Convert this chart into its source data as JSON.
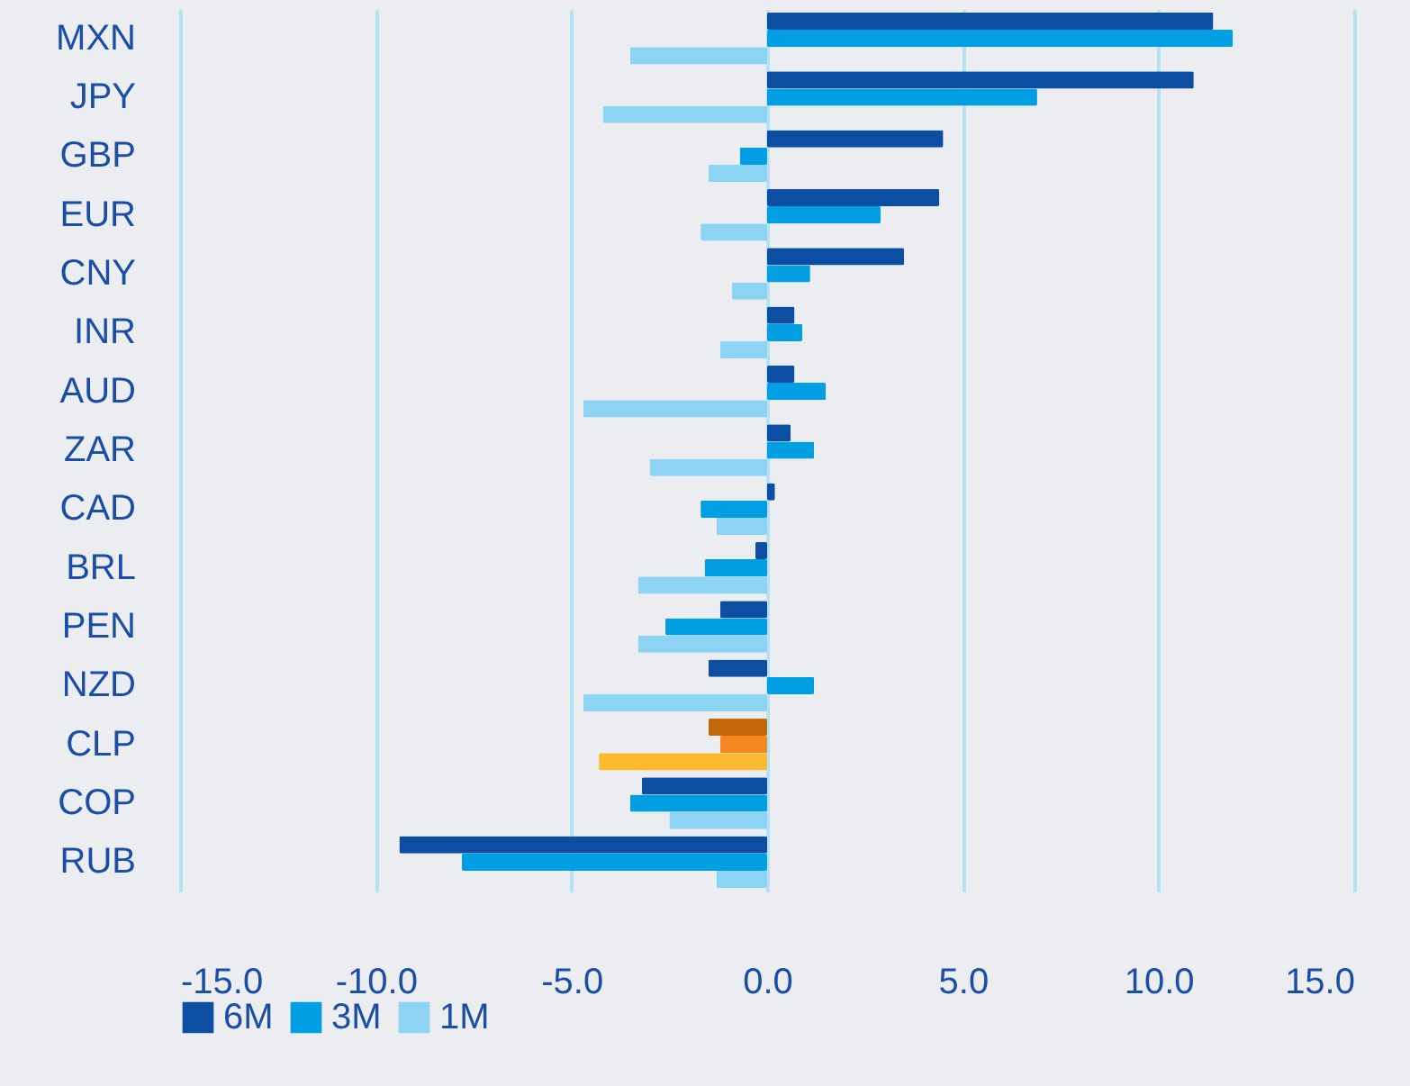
{
  "chart_data": {
    "type": "bar",
    "orientation": "horizontal",
    "categories": [
      "MXN",
      "JPY",
      "GBP",
      "EUR",
      "CNY",
      "INR",
      "AUD",
      "ZAR",
      "CAD",
      "BRL",
      "PEN",
      "NZD",
      "CLP",
      "COP",
      "RUB"
    ],
    "series": [
      {
        "name": "6M",
        "color": "#0b4ea2",
        "colors": [
          "#0b4ea2",
          "#0b4ea2",
          "#0b4ea2",
          "#0b4ea2",
          "#0b4ea2",
          "#0b4ea2",
          "#0b4ea2",
          "#0b4ea2",
          "#0b4ea2",
          "#0b4ea2",
          "#0b4ea2",
          "#0b4ea2",
          "#c4660a",
          "#0b4ea2",
          "#0b4ea2"
        ],
        "values": [
          11.4,
          10.9,
          4.5,
          4.4,
          3.5,
          0.7,
          0.7,
          0.6,
          0.2,
          -0.3,
          -1.2,
          -1.5,
          -1.5,
          -3.2,
          -9.4
        ]
      },
      {
        "name": "3M",
        "color": "#009fe3",
        "colors": [
          "#009fe3",
          "#009fe3",
          "#009fe3",
          "#009fe3",
          "#009fe3",
          "#009fe3",
          "#009fe3",
          "#009fe3",
          "#009fe3",
          "#009fe3",
          "#009fe3",
          "#009fe3",
          "#f5871f",
          "#009fe3",
          "#009fe3"
        ],
        "values": [
          11.9,
          6.9,
          -0.7,
          2.9,
          1.1,
          0.9,
          1.5,
          1.2,
          -1.7,
          -1.6,
          -2.6,
          1.2,
          -1.2,
          -3.5,
          -7.8
        ]
      },
      {
        "name": "1M",
        "color": "#8dd3f3",
        "colors": [
          "#8dd3f3",
          "#8dd3f3",
          "#8dd3f3",
          "#8dd3f3",
          "#8dd3f3",
          "#8dd3f3",
          "#8dd3f3",
          "#8dd3f3",
          "#8dd3f3",
          "#8dd3f3",
          "#8dd3f3",
          "#8dd3f3",
          "#fdb92e",
          "#8dd3f3",
          "#8dd3f3"
        ],
        "values": [
          -3.5,
          -4.2,
          -1.5,
          -1.7,
          -0.9,
          -1.2,
          -4.7,
          -3.0,
          -1.3,
          -3.3,
          -3.3,
          -4.7,
          -4.3,
          -2.5,
          -1.3
        ]
      }
    ],
    "xlim": [
      -15,
      15
    ],
    "xticks": [
      {
        "value": -15,
        "label": "-15.0"
      },
      {
        "value": -10,
        "label": "-10.0"
      },
      {
        "value": -5,
        "label": "-5.0"
      },
      {
        "value": 0,
        "label": "0.0"
      },
      {
        "value": 5,
        "label": "5.0"
      },
      {
        "value": 10,
        "label": "10.0"
      },
      {
        "value": 15,
        "label": "15.0"
      }
    ],
    "grid": "x",
    "legend": "bottom"
  }
}
